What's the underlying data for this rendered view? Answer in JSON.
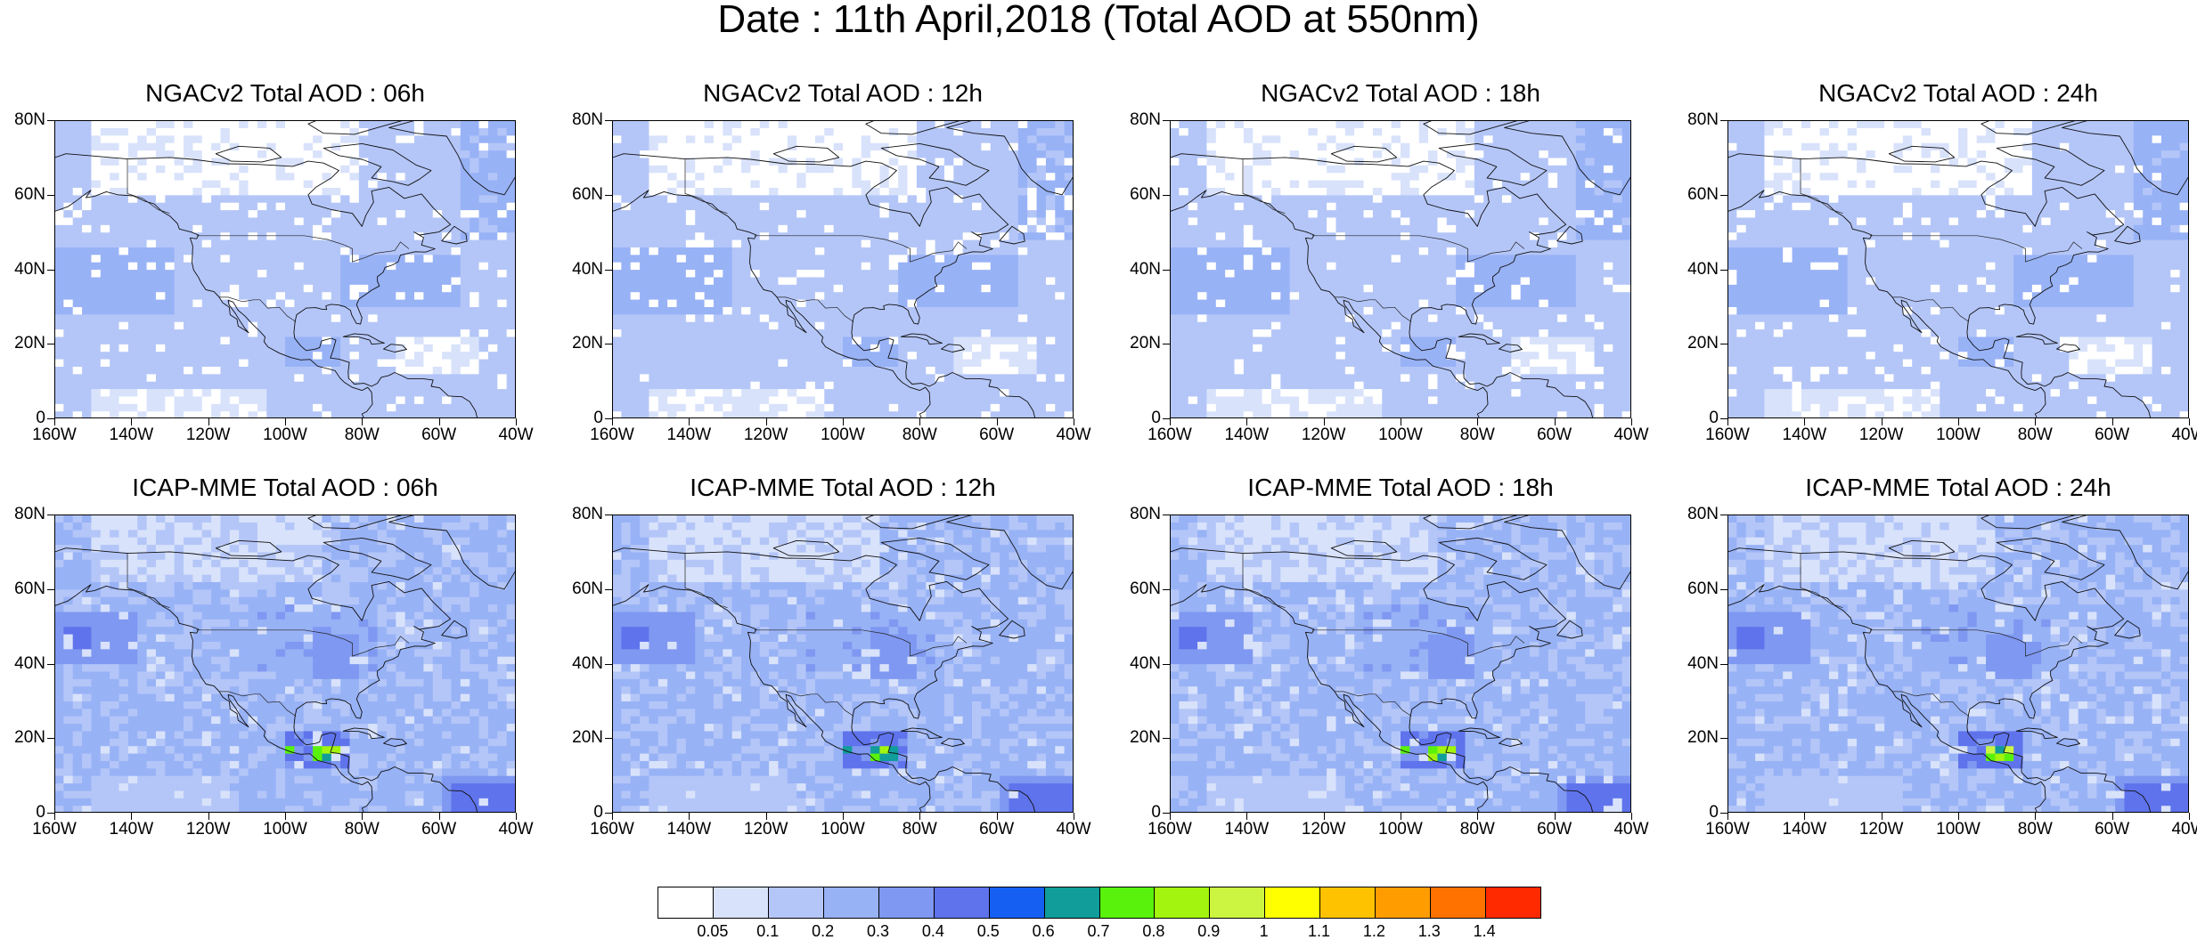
{
  "title": "Date : 11th April,2018 (Total AOD at 550nm)",
  "panels": [
    {
      "title": "NGACv2 Total AOD : 06h",
      "model": "ngac"
    },
    {
      "title": "NGACv2 Total AOD : 12h",
      "model": "ngac"
    },
    {
      "title": "NGACv2 Total AOD : 18h",
      "model": "ngac"
    },
    {
      "title": "NGACv2 Total AOD : 24h",
      "model": "ngac"
    },
    {
      "title": "ICAP-MME Total AOD : 06h",
      "model": "icap"
    },
    {
      "title": "ICAP-MME Total AOD : 12h",
      "model": "icap"
    },
    {
      "title": "ICAP-MME Total AOD : 18h",
      "model": "icap"
    },
    {
      "title": "ICAP-MME Total AOD : 24h",
      "model": "icap"
    }
  ],
  "axes": {
    "lat_ticks": [
      "80N",
      "60N",
      "40N",
      "20N",
      "0"
    ],
    "lat_values": [
      80,
      60,
      40,
      20,
      0
    ],
    "lon_ticks": [
      "160W",
      "140W",
      "120W",
      "100W",
      "80W",
      "60W",
      "40W"
    ],
    "lon_values": [
      -160,
      -140,
      -120,
      -100,
      -80,
      -60,
      -40
    ],
    "lon_range": [
      -160,
      -40
    ],
    "lat_range": [
      0,
      80
    ]
  },
  "colorbar": {
    "labels": [
      "0.05",
      "0.1",
      "0.2",
      "0.3",
      "0.4",
      "0.5",
      "0.6",
      "0.7",
      "0.8",
      "0.9",
      "1",
      "1.1",
      "1.2",
      "1.3",
      "1.4"
    ],
    "colors": [
      "#ffffff",
      "#d8e2fb",
      "#b4c6f8",
      "#98b2f6",
      "#7f98f1",
      "#5f73ec",
      "#1560f2",
      "#119d9a",
      "#58f20c",
      "#a3f40e",
      "#ccf542",
      "#ffff00",
      "#ffc200",
      "#ff9d00",
      "#ff7200",
      "#ff2a00"
    ]
  }
}
